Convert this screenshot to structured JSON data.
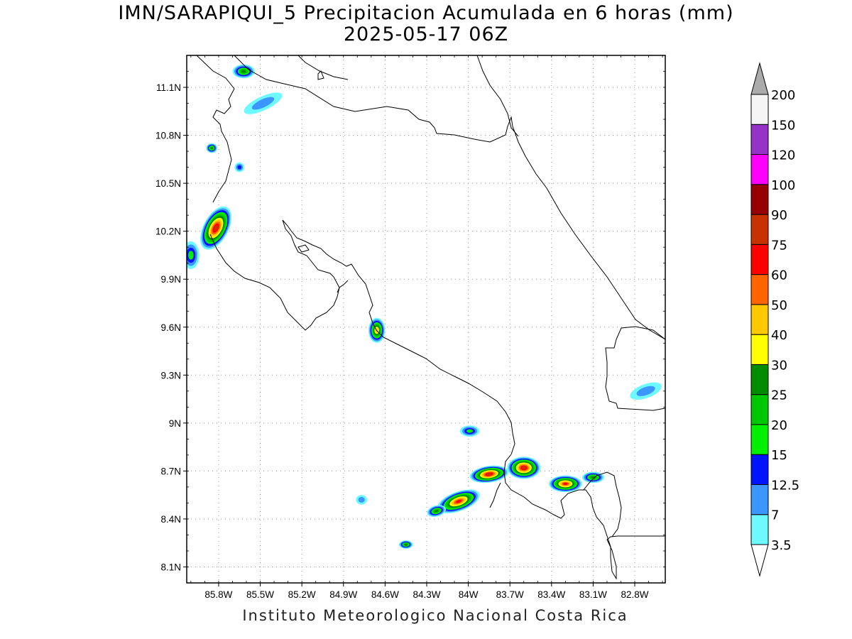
{
  "title_line1": "IMN/SARAPIQUI_5 Precipitacion Acumulada en 6 horas (mm)",
  "title_line2": "2025-05-17 06Z",
  "footer": "Instituto Meteorologico Nacional Costa Rica",
  "map": {
    "lon_range": [
      -86.03,
      -82.58
    ],
    "lat_range": [
      8.0,
      11.3
    ],
    "lat_ticks": [
      {
        "value": 11.1,
        "label": "11.1N"
      },
      {
        "value": 10.8,
        "label": "10.8N"
      },
      {
        "value": 10.5,
        "label": "10.5N"
      },
      {
        "value": 10.2,
        "label": "10.2N"
      },
      {
        "value": 9.9,
        "label": "9.9N"
      },
      {
        "value": 9.6,
        "label": "9.6N"
      },
      {
        "value": 9.3,
        "label": "9.3N"
      },
      {
        "value": 9.0,
        "label": "9N"
      },
      {
        "value": 8.7,
        "label": "8.7N"
      },
      {
        "value": 8.4,
        "label": "8.4N"
      },
      {
        "value": 8.1,
        "label": "8.1N"
      }
    ],
    "lon_ticks": [
      {
        "value": -85.8,
        "label": "85.8W"
      },
      {
        "value": -85.5,
        "label": "85.5W"
      },
      {
        "value": -85.2,
        "label": "85.2W"
      },
      {
        "value": -84.9,
        "label": "84.9W"
      },
      {
        "value": -84.6,
        "label": "84.6W"
      },
      {
        "value": -84.3,
        "label": "84.3W"
      },
      {
        "value": -84.0,
        "label": "84W"
      },
      {
        "value": -83.7,
        "label": "83.7W"
      },
      {
        "value": -83.4,
        "label": "83.4W"
      },
      {
        "value": -83.1,
        "label": "83.1W"
      },
      {
        "value": -82.8,
        "label": "82.8W"
      }
    ],
    "grid": "dotted"
  },
  "colorbar": {
    "labels": [
      "3.5",
      "7",
      "12.5",
      "15",
      "20",
      "25",
      "30",
      "40",
      "50",
      "60",
      "75",
      "90",
      "100",
      "120",
      "150",
      "200"
    ],
    "colors": [
      "#6ef8ff",
      "#3c96ff",
      "#0014ff",
      "#00f000",
      "#00c800",
      "#008c00",
      "#ffff00",
      "#ffc800",
      "#ff6400",
      "#ff0000",
      "#c83200",
      "#960000",
      "#ff00ff",
      "#9632c8",
      "#f5f5f5"
    ],
    "arrow_colors": {
      "top": "#aaaaaa",
      "bottom": "#ffffff"
    }
  },
  "precip_cells": [
    {
      "lon": -85.82,
      "lat": 10.22,
      "peak": 75,
      "rx": 0.09,
      "ry": 0.17,
      "rot": 28
    },
    {
      "lon": -86.0,
      "lat": 10.05,
      "peak": 15,
      "rx": 0.06,
      "ry": 0.1,
      "rot": 0
    },
    {
      "lon": -85.62,
      "lat": 11.2,
      "peak": 25,
      "rx": 0.08,
      "ry": 0.05,
      "rot": 0
    },
    {
      "lon": -85.48,
      "lat": 11.0,
      "peak": 7,
      "rx": 0.15,
      "ry": 0.05,
      "rot": -25
    },
    {
      "lon": -85.85,
      "lat": 10.72,
      "peak": 25,
      "rx": 0.04,
      "ry": 0.035,
      "rot": 0
    },
    {
      "lon": -85.65,
      "lat": 10.6,
      "peak": 12.5,
      "rx": 0.035,
      "ry": 0.035,
      "rot": 0
    },
    {
      "lon": -84.66,
      "lat": 9.58,
      "peak": 40,
      "rx": 0.06,
      "ry": 0.09,
      "rot": 0
    },
    {
      "lon": -83.85,
      "lat": 8.68,
      "peak": 75,
      "rx": 0.14,
      "ry": 0.06,
      "rot": -8
    },
    {
      "lon": -83.6,
      "lat": 8.72,
      "peak": 75,
      "rx": 0.12,
      "ry": 0.08,
      "rot": 0
    },
    {
      "lon": -84.07,
      "lat": 8.51,
      "peak": 60,
      "rx": 0.16,
      "ry": 0.07,
      "rot": -20
    },
    {
      "lon": -83.3,
      "lat": 8.62,
      "peak": 60,
      "rx": 0.12,
      "ry": 0.06,
      "rot": 0
    },
    {
      "lon": -83.1,
      "lat": 8.66,
      "peak": 25,
      "rx": 0.08,
      "ry": 0.04,
      "rot": 0
    },
    {
      "lon": -84.23,
      "lat": 8.45,
      "peak": 25,
      "rx": 0.07,
      "ry": 0.04,
      "rot": -15
    },
    {
      "lon": -83.99,
      "lat": 8.95,
      "peak": 15,
      "rx": 0.07,
      "ry": 0.04,
      "rot": 0
    },
    {
      "lon": -84.45,
      "lat": 8.24,
      "peak": 25,
      "rx": 0.05,
      "ry": 0.03,
      "rot": 0
    },
    {
      "lon": -82.72,
      "lat": 9.2,
      "peak": 7,
      "rx": 0.12,
      "ry": 0.05,
      "rot": -20
    },
    {
      "lon": -84.77,
      "lat": 8.52,
      "peak": 7,
      "rx": 0.04,
      "ry": 0.035,
      "rot": 0
    }
  ]
}
